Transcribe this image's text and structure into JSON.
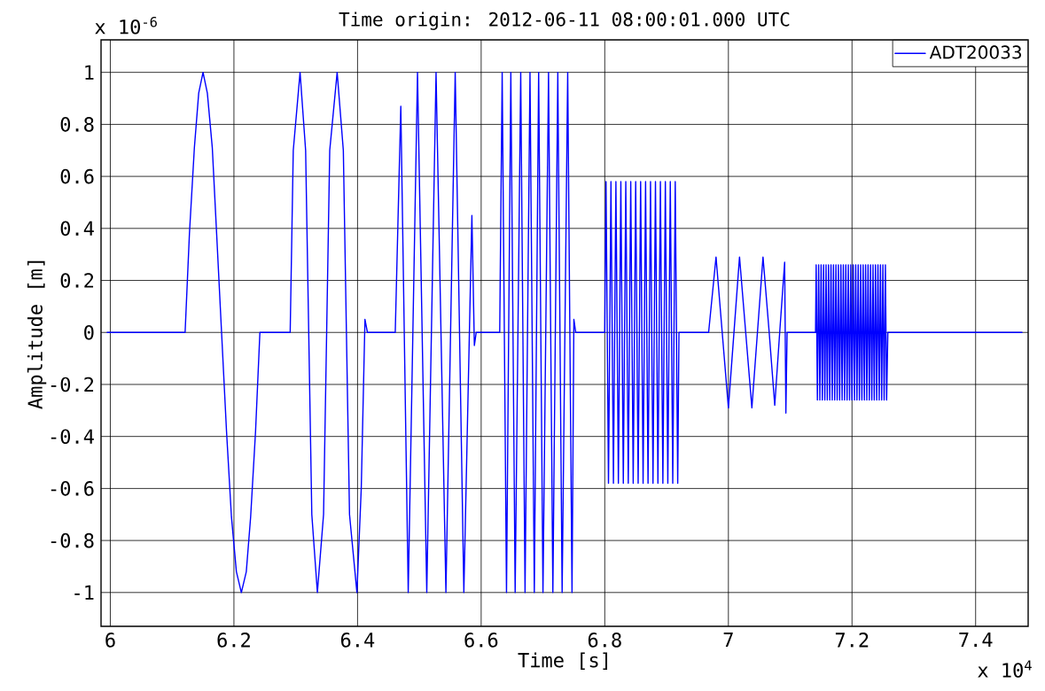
{
  "chart_data": {
    "type": "line",
    "title": "Time origin: 2012-06-11 08:00:01.000 UTC",
    "xlabel": "Time  [s]",
    "ylabel": "Amplitude  [m]",
    "annotations": [
      "x 10$^{-6}$",
      "x 10$^{4}$"
    ],
    "xlim": [
      5.985,
      7.485
    ],
    "ylim": [
      -1.13,
      1.125
    ],
    "xticks": [
      6,
      6.2,
      6.4,
      6.6,
      6.8,
      7,
      7.2,
      7.4
    ],
    "yticks": [
      -1,
      -0.8,
      -0.6,
      -0.4,
      -0.2,
      0,
      0.2,
      0.4,
      0.6,
      0.8,
      1
    ],
    "grid": true,
    "legend": "top right",
    "marker": "none",
    "line_style": "solid",
    "series": [
      {
        "name": "ADT20033",
        "color": "#0000ff",
        "x": [
          5.995,
          6.121,
          6.128,
          6.136,
          6.143,
          6.15,
          6.157,
          6.165,
          6.172,
          6.18,
          6.188,
          6.196,
          6.204,
          6.212,
          6.22,
          6.227,
          6.235,
          6.242,
          6.291,
          6.296,
          6.307,
          6.316,
          6.321,
          6.326,
          6.335,
          6.345,
          6.35,
          6.355,
          6.367,
          6.377,
          6.382,
          6.387,
          6.399,
          6.406,
          6.412,
          6.416,
          6.461,
          6.47,
          6.482,
          6.497,
          6.512,
          6.527,
          6.543,
          6.558,
          6.572,
          6.585,
          6.589,
          6.592,
          6.63,
          6.634,
          6.641,
          6.648,
          6.655,
          6.664,
          6.671,
          6.679,
          6.686,
          6.693,
          6.7,
          6.709,
          6.716,
          6.724,
          6.731,
          6.74,
          6.747,
          6.75,
          6.753,
          6.8,
          6.802,
          6.806,
          6.81,
          6.814,
          6.818,
          6.822,
          6.826,
          6.83,
          6.834,
          6.838,
          6.842,
          6.846,
          6.85,
          6.854,
          6.858,
          6.862,
          6.866,
          6.87,
          6.874,
          6.878,
          6.882,
          6.886,
          6.89,
          6.894,
          6.898,
          6.902,
          6.906,
          6.91,
          6.914,
          6.918,
          6.92,
          6.968,
          6.98,
          6.99,
          7.0,
          7.009,
          7.018,
          7.028,
          7.038,
          7.047,
          7.056,
          7.066,
          7.075,
          7.083,
          7.091,
          7.093,
          7.095,
          7.141,
          7.142,
          7.144,
          7.146,
          7.148,
          7.15,
          7.152,
          7.154,
          7.156,
          7.158,
          7.16,
          7.162,
          7.164,
          7.166,
          7.168,
          7.17,
          7.172,
          7.174,
          7.176,
          7.178,
          7.18,
          7.182,
          7.184,
          7.186,
          7.188,
          7.19,
          7.192,
          7.194,
          7.196,
          7.198,
          7.2,
          7.202,
          7.204,
          7.206,
          7.208,
          7.21,
          7.212,
          7.214,
          7.216,
          7.218,
          7.22,
          7.222,
          7.224,
          7.226,
          7.228,
          7.23,
          7.232,
          7.234,
          7.236,
          7.238,
          7.24,
          7.242,
          7.244,
          7.246,
          7.248,
          7.25,
          7.252,
          7.254,
          7.256,
          7.258,
          7.475
        ],
        "values": [
          0,
          0,
          0.38,
          0.71,
          0.92,
          1,
          0.92,
          0.71,
          0.38,
          0,
          -0.38,
          -0.71,
          -0.92,
          -1,
          -0.92,
          -0.71,
          -0.38,
          0,
          0,
          0.7,
          1,
          0.7,
          0,
          -0.7,
          -1,
          -0.7,
          0,
          0.7,
          1,
          0.7,
          0,
          -0.7,
          -1,
          -0.6,
          0.05,
          0,
          0,
          0.87,
          -1,
          1,
          -1,
          1,
          -1,
          1,
          -1,
          0.45,
          -0.05,
          0,
          0,
          1,
          -1,
          1,
          -1,
          1,
          -1,
          1,
          -1,
          1,
          -1,
          1,
          -1,
          1,
          -1,
          1,
          -1,
          0.05,
          0,
          0,
          0.58,
          -0.58,
          0.58,
          -0.58,
          0.58,
          -0.58,
          0.58,
          -0.58,
          0.58,
          -0.58,
          0.58,
          -0.58,
          0.58,
          -0.58,
          0.58,
          -0.58,
          0.58,
          -0.58,
          0.58,
          -0.58,
          0.58,
          -0.58,
          0.58,
          -0.58,
          0.58,
          -0.58,
          0.58,
          -0.58,
          0.58,
          -0.58,
          0,
          0,
          0.29,
          0,
          -0.29,
          0,
          0.29,
          0,
          -0.29,
          0,
          0.29,
          0,
          -0.28,
          0,
          0.27,
          -0.31,
          0,
          0,
          0.26,
          -0.26,
          0.26,
          -0.26,
          0.26,
          -0.26,
          0.26,
          -0.26,
          0.26,
          -0.26,
          0.26,
          -0.26,
          0.26,
          -0.26,
          0.26,
          -0.26,
          0.26,
          -0.26,
          0.26,
          -0.26,
          0.26,
          -0.26,
          0.26,
          -0.26,
          0.26,
          -0.26,
          0.26,
          -0.26,
          0.26,
          -0.26,
          0.26,
          -0.26,
          0.26,
          -0.26,
          0.26,
          -0.26,
          0.26,
          -0.26,
          0.26,
          -0.26,
          0.26,
          -0.26,
          0.26,
          -0.26,
          0.26,
          -0.26,
          0.26,
          -0.26,
          0.26,
          -0.26,
          0.26,
          -0.26,
          0.26,
          -0.26,
          0.26,
          -0.26,
          0.26,
          -0.26,
          0,
          0
        ]
      }
    ]
  }
}
